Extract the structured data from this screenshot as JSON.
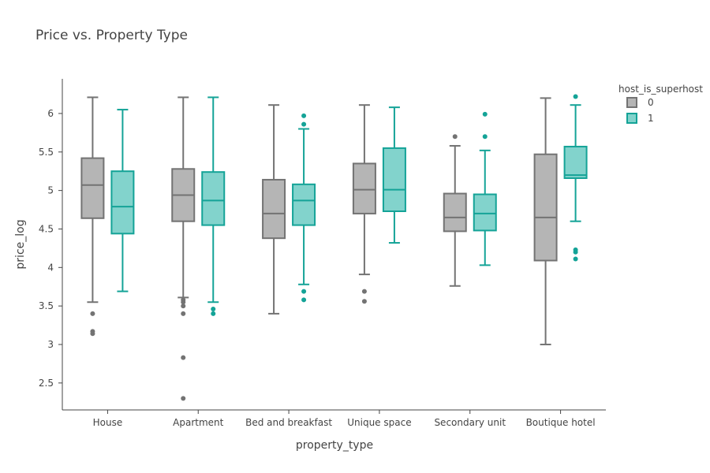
{
  "chart_data": {
    "type": "box",
    "title": "Price vs. Property Type",
    "xlabel": "property_type",
    "ylabel": "price_log",
    "ylim": [
      2.15,
      6.45
    ],
    "yticks": [
      2.5,
      3,
      3.5,
      4,
      4.5,
      5,
      5.5,
      6
    ],
    "ytick_labels": [
      "2.5",
      "3",
      "3.5",
      "4",
      "4.5",
      "5",
      "5.5",
      "6"
    ],
    "categories": [
      "House",
      "Apartment",
      "Bed and breakfast",
      "Unique space",
      "Secondary unit",
      "Boutique hotel"
    ],
    "legend": {
      "title": "host_is_superhost",
      "position": "top-right"
    },
    "series": [
      {
        "name": "0",
        "line_color": "#737373",
        "fill_color": "#b5b5b5",
        "boxes": [
          {
            "min": 3.55,
            "q1": 4.64,
            "median": 5.07,
            "q3": 5.42,
            "max": 6.21,
            "outliers": [
              3.4,
              3.17,
              3.14
            ]
          },
          {
            "min": 3.61,
            "q1": 4.6,
            "median": 4.94,
            "q3": 5.28,
            "max": 6.21,
            "outliers": [
              3.58,
              3.55,
              3.5,
              3.4,
              2.83,
              2.3
            ]
          },
          {
            "min": 3.4,
            "q1": 4.38,
            "median": 4.7,
            "q3": 5.14,
            "max": 6.11,
            "outliers": []
          },
          {
            "min": 3.91,
            "q1": 4.7,
            "median": 5.01,
            "q3": 5.35,
            "max": 6.11,
            "outliers": [
              3.69,
              3.56
            ]
          },
          {
            "min": 3.76,
            "q1": 4.47,
            "median": 4.65,
            "q3": 4.96,
            "max": 5.58,
            "outliers": [
              5.7
            ]
          },
          {
            "min": 3.0,
            "q1": 4.09,
            "median": 4.65,
            "q3": 5.47,
            "max": 6.2,
            "outliers": []
          }
        ]
      },
      {
        "name": "1",
        "line_color": "#14a397",
        "fill_color": "#82d3cc",
        "boxes": [
          {
            "min": 3.69,
            "q1": 4.44,
            "median": 4.79,
            "q3": 5.25,
            "max": 6.05,
            "outliers": []
          },
          {
            "min": 3.55,
            "q1": 4.55,
            "median": 4.87,
            "q3": 5.24,
            "max": 6.21,
            "outliers": [
              3.46,
              3.4
            ]
          },
          {
            "min": 3.78,
            "q1": 4.55,
            "median": 4.87,
            "q3": 5.08,
            "max": 5.8,
            "outliers": [
              5.97,
              5.86,
              3.69,
              3.58
            ]
          },
          {
            "min": 4.32,
            "q1": 4.73,
            "median": 5.01,
            "q3": 5.55,
            "max": 6.08,
            "outliers": []
          },
          {
            "min": 4.03,
            "q1": 4.48,
            "median": 4.7,
            "q3": 4.95,
            "max": 5.52,
            "outliers": [
              5.99,
              5.7
            ]
          },
          {
            "min": 4.6,
            "q1": 5.16,
            "median": 5.2,
            "q3": 5.57,
            "max": 6.11,
            "outliers": [
              6.22,
              4.23,
              4.2,
              4.11
            ]
          }
        ]
      }
    ]
  }
}
